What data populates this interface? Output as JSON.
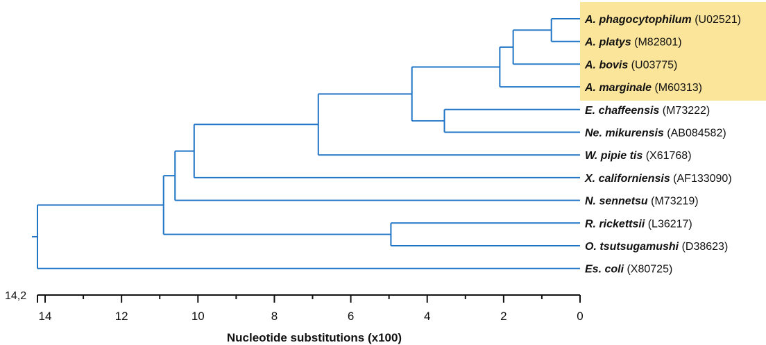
{
  "figure": {
    "highlight_color": "#fbe59a",
    "branch_color": "#1f74c5",
    "root_value_label": "14,2",
    "axis": {
      "title": "Nucleotide substitutions (x100)",
      "ticks": [
        "14",
        "12",
        "10",
        "8",
        "6",
        "4",
        "2",
        "0"
      ],
      "min": 0,
      "max": 14.2,
      "direction": "reversed"
    },
    "taxa": [
      {
        "name": "A. phagocytophilum",
        "accession": "(U02521)",
        "highlighted": true
      },
      {
        "name": "A. platys",
        "accession": "(M82801)",
        "highlighted": true
      },
      {
        "name": "A. bovis",
        "accession": "(U03775)",
        "highlighted": true
      },
      {
        "name": "A. marginale",
        "accession": "(M60313)",
        "highlighted": true
      },
      {
        "name": "E. chaffeensis",
        "accession": "(M73222)",
        "highlighted": false
      },
      {
        "name": "Ne. mikurensis",
        "accession": "(AB084582)",
        "highlighted": false
      },
      {
        "name": "W. pipie   tis",
        "accession": "(X61768)",
        "highlighted": false
      },
      {
        "name": "X. californiensis",
        "accession": "(AF133090)",
        "highlighted": false
      },
      {
        "name": "N. sennetsu",
        "accession": "(M73219)",
        "highlighted": false
      },
      {
        "name": "R. rickettsii",
        "accession": "(L36217)",
        "highlighted": false
      },
      {
        "name": "O. tsutsugamushi",
        "accession": "(D38623)",
        "highlighted": false
      },
      {
        "name": "Es. coli",
        "accession": "(X80725)",
        "highlighted": false
      }
    ],
    "tree": {
      "h": 14.2,
      "children": [
        {
          "h": 10.9,
          "children": [
            {
              "h": 10.6,
              "children": [
                {
                  "h": 10.1,
                  "children": [
                    {
                      "h": 6.85,
                      "children": [
                        {
                          "h": 4.4,
                          "children": [
                            {
                              "h": 2.1,
                              "children": [
                                {
                                  "h": 1.75,
                                  "children": [
                                    {
                                      "h": 0.75,
                                      "children": [
                                        {
                                          "leaf": 0
                                        },
                                        {
                                          "leaf": 1
                                        }
                                      ]
                                    },
                                    {
                                      "leaf": 2
                                    }
                                  ]
                                },
                                {
                                  "leaf": 3
                                }
                              ]
                            },
                            {
                              "h": 3.55,
                              "children": [
                                {
                                  "leaf": 4
                                },
                                {
                                  "leaf": 5
                                }
                              ]
                            }
                          ]
                        },
                        {
                          "leaf": 6
                        }
                      ]
                    },
                    {
                      "leaf": 7
                    }
                  ]
                },
                {
                  "leaf": 8
                }
              ]
            },
            {
              "h": 4.95,
              "children": [
                {
                  "leaf": 9
                },
                {
                  "leaf": 10
                }
              ]
            }
          ]
        },
        {
          "leaf": 11
        }
      ]
    }
  }
}
